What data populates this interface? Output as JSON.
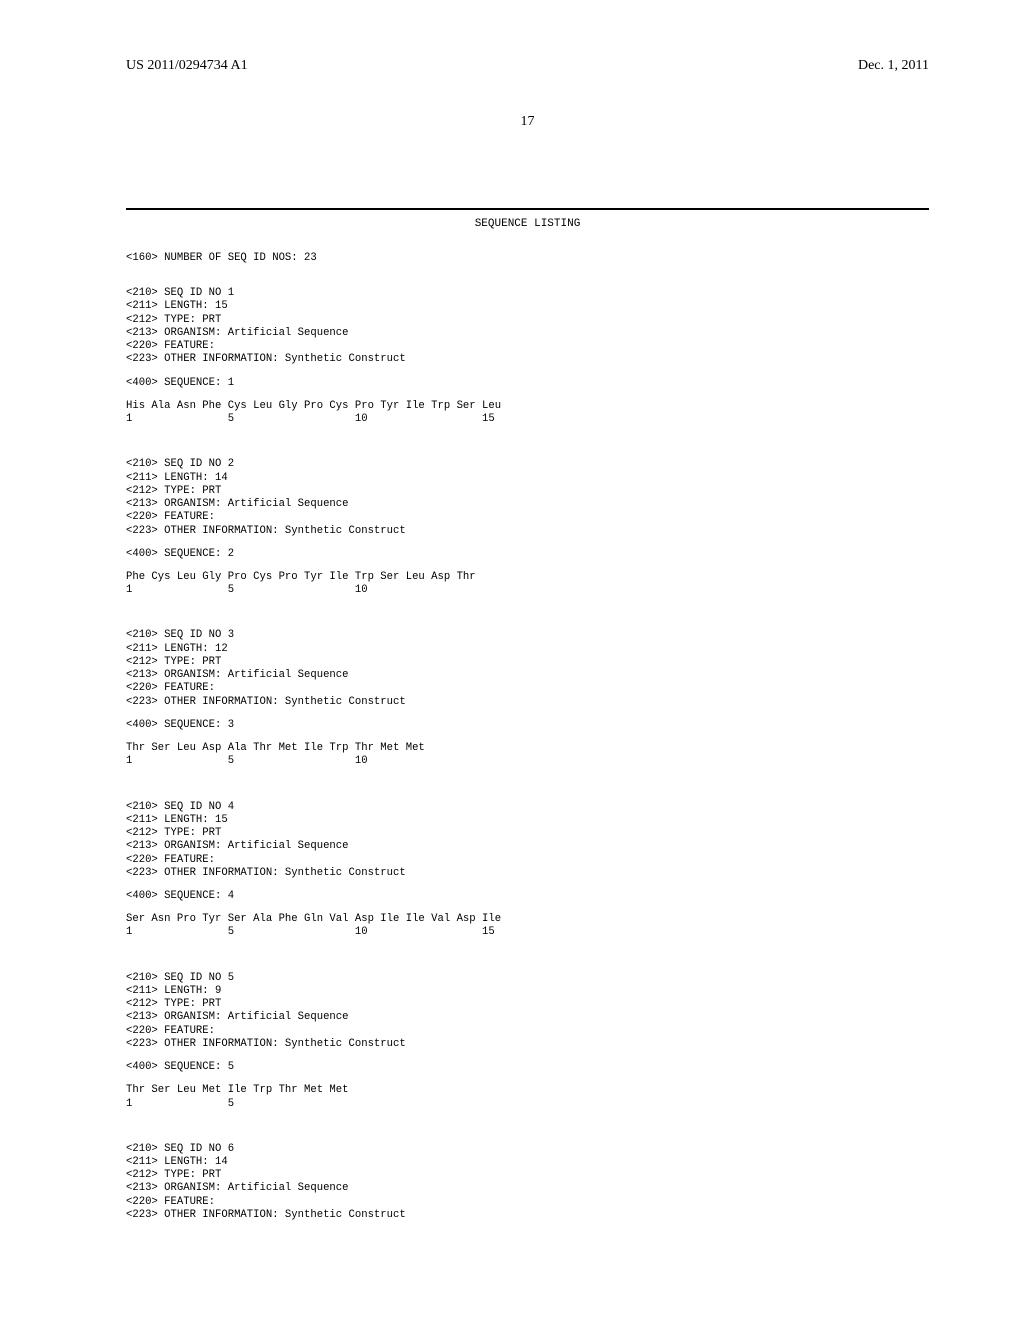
{
  "header": {
    "publication_number": "US 2011/0294734 A1",
    "publication_date": "Dec. 1, 2011",
    "page_number": "17"
  },
  "title": "SEQUENCE LISTING",
  "num_seqs_line": "<160> NUMBER OF SEQ ID NOS: 23",
  "entries": [
    {
      "meta": [
        "<210> SEQ ID NO 1",
        "<211> LENGTH: 15",
        "<212> TYPE: PRT",
        "<213> ORGANISM: Artificial Sequence",
        "<220> FEATURE:",
        "<223> OTHER INFORMATION: Synthetic Construct"
      ],
      "seq_label": "<400> SEQUENCE: 1",
      "seq_line": "His Ala Asn Phe Cys Leu Gly Pro Cys Pro Tyr Ile Trp Ser Leu",
      "index_line": "1               5                   10                  15"
    },
    {
      "meta": [
        "<210> SEQ ID NO 2",
        "<211> LENGTH: 14",
        "<212> TYPE: PRT",
        "<213> ORGANISM: Artificial Sequence",
        "<220> FEATURE:",
        "<223> OTHER INFORMATION: Synthetic Construct"
      ],
      "seq_label": "<400> SEQUENCE: 2",
      "seq_line": "Phe Cys Leu Gly Pro Cys Pro Tyr Ile Trp Ser Leu Asp Thr",
      "index_line": "1               5                   10"
    },
    {
      "meta": [
        "<210> SEQ ID NO 3",
        "<211> LENGTH: 12",
        "<212> TYPE: PRT",
        "<213> ORGANISM: Artificial Sequence",
        "<220> FEATURE:",
        "<223> OTHER INFORMATION: Synthetic Construct"
      ],
      "seq_label": "<400> SEQUENCE: 3",
      "seq_line": "Thr Ser Leu Asp Ala Thr Met Ile Trp Thr Met Met",
      "index_line": "1               5                   10"
    },
    {
      "meta": [
        "<210> SEQ ID NO 4",
        "<211> LENGTH: 15",
        "<212> TYPE: PRT",
        "<213> ORGANISM: Artificial Sequence",
        "<220> FEATURE:",
        "<223> OTHER INFORMATION: Synthetic Construct"
      ],
      "seq_label": "<400> SEQUENCE: 4",
      "seq_line": "Ser Asn Pro Tyr Ser Ala Phe Gln Val Asp Ile Ile Val Asp Ile",
      "index_line": "1               5                   10                  15"
    },
    {
      "meta": [
        "<210> SEQ ID NO 5",
        "<211> LENGTH: 9",
        "<212> TYPE: PRT",
        "<213> ORGANISM: Artificial Sequence",
        "<220> FEATURE:",
        "<223> OTHER INFORMATION: Synthetic Construct"
      ],
      "seq_label": "<400> SEQUENCE: 5",
      "seq_line": "Thr Ser Leu Met Ile Trp Thr Met Met",
      "index_line": "1               5"
    },
    {
      "meta": [
        "<210> SEQ ID NO 6",
        "<211> LENGTH: 14",
        "<212> TYPE: PRT",
        "<213> ORGANISM: Artificial Sequence",
        "<220> FEATURE:",
        "<223> OTHER INFORMATION: Synthetic Construct"
      ],
      "seq_label": null,
      "seq_line": null,
      "index_line": null
    }
  ]
}
